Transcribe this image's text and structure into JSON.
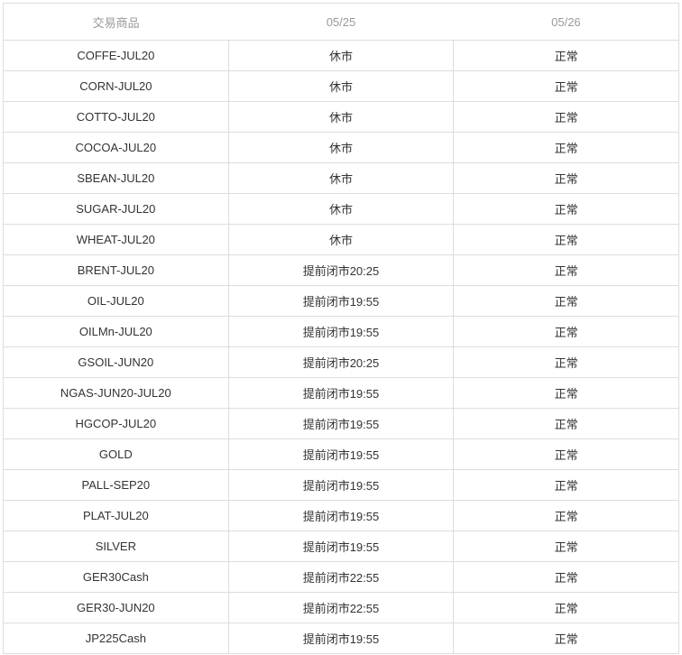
{
  "table": {
    "headers": [
      "交易商品",
      "05/25",
      "05/26"
    ],
    "rows": [
      {
        "commodity": "COFFE-JUL20",
        "d0525": "休市",
        "d0526": "正常"
      },
      {
        "commodity": "CORN-JUL20",
        "d0525": "休市",
        "d0526": "正常"
      },
      {
        "commodity": "COTTO-JUL20",
        "d0525": "休市",
        "d0526": "正常"
      },
      {
        "commodity": "COCOA-JUL20",
        "d0525": "休市",
        "d0526": "正常"
      },
      {
        "commodity": "SBEAN-JUL20",
        "d0525": "休市",
        "d0526": "正常"
      },
      {
        "commodity": "SUGAR-JUL20",
        "d0525": "休市",
        "d0526": "正常"
      },
      {
        "commodity": "WHEAT-JUL20",
        "d0525": "休市",
        "d0526": "正常"
      },
      {
        "commodity": "BRENT-JUL20",
        "d0525": "提前闭市20:25",
        "d0526": "正常"
      },
      {
        "commodity": "OIL-JUL20",
        "d0525": "提前闭市19:55",
        "d0526": "正常"
      },
      {
        "commodity": "OILMn-JUL20",
        "d0525": "提前闭市19:55",
        "d0526": "正常"
      },
      {
        "commodity": "GSOIL-JUN20",
        "d0525": "提前闭市20:25",
        "d0526": "正常"
      },
      {
        "commodity": "NGAS-JUN20-JUL20",
        "d0525": "提前闭市19:55",
        "d0526": "正常"
      },
      {
        "commodity": "HGCOP-JUL20",
        "d0525": "提前闭市19:55",
        "d0526": "正常"
      },
      {
        "commodity": "GOLD",
        "d0525": "提前闭市19:55",
        "d0526": "正常"
      },
      {
        "commodity": "PALL-SEP20",
        "d0525": "提前闭市19:55",
        "d0526": "正常"
      },
      {
        "commodity": "PLAT-JUL20",
        "d0525": "提前闭市19:55",
        "d0526": "正常"
      },
      {
        "commodity": "SILVER",
        "d0525": "提前闭市19:55",
        "d0526": "正常"
      },
      {
        "commodity": "GER30Cash",
        "d0525": "提前闭市22:55",
        "d0526": "正常"
      },
      {
        "commodity": "GER30-JUN20",
        "d0525": "提前闭市22:55",
        "d0526": "正常"
      },
      {
        "commodity": "JP225Cash",
        "d0525": "提前闭市19:55",
        "d0526": "正常"
      }
    ]
  },
  "colors": {
    "border": "#dddddd",
    "header_text": "#999999",
    "body_text": "#333333",
    "background": "#ffffff"
  }
}
